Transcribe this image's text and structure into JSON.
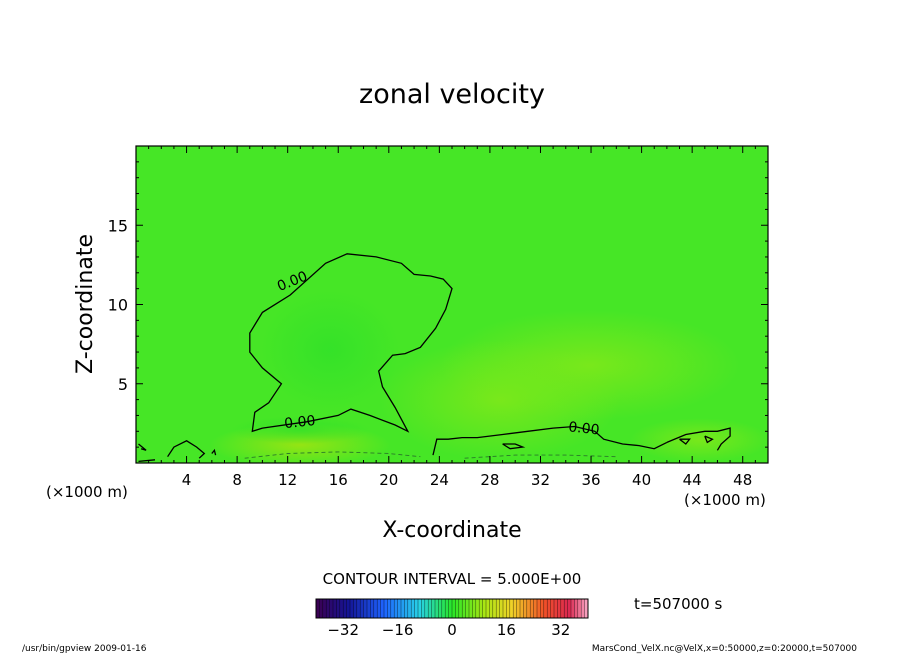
{
  "chart_data": {
    "type": "heatmap",
    "title": "zonal velocity",
    "xlabel": "X-coordinate",
    "ylabel": "Z-coordinate",
    "x_unit_left": "(×1000 m)",
    "x_unit_right": "(×1000 m)",
    "xlim": [
      0,
      50
    ],
    "ylim": [
      0,
      20
    ],
    "x_ticks": [
      4,
      8,
      12,
      16,
      20,
      24,
      28,
      32,
      36,
      40,
      44,
      48
    ],
    "y_ticks": [
      5,
      10,
      15
    ],
    "contour_interval_text": "CONTOUR INTERVAL = 5.000E+00",
    "time_text": "t=507000 s",
    "colorbar": {
      "min": -40,
      "max": 40,
      "ticks": [
        -32,
        -16,
        0,
        16,
        32
      ]
    },
    "contour_labels": [
      {
        "text": "0.00",
        "x": 12.5,
        "y": 11.2,
        "rotate": -22
      },
      {
        "text": "0.00",
        "x": 13.0,
        "y": 2.3,
        "rotate": -6
      },
      {
        "text": "0.00",
        "x": 35.4,
        "y": 1.9,
        "rotate": 6
      }
    ],
    "zero_contours": [
      [
        [
          10.0,
          2.2
        ],
        [
          13.5,
          2.6
        ],
        [
          16.0,
          3.0
        ],
        [
          17.0,
          3.4
        ],
        [
          18.5,
          3.0
        ],
        [
          20.5,
          2.4
        ],
        [
          21.5,
          2.0
        ],
        [
          20.5,
          3.5
        ],
        [
          19.5,
          4.8
        ],
        [
          19.2,
          5.8
        ],
        [
          20.3,
          6.8
        ],
        [
          21.3,
          6.9
        ],
        [
          22.5,
          7.3
        ],
        [
          23.7,
          8.5
        ],
        [
          24.5,
          9.7
        ],
        [
          25.0,
          11.0
        ],
        [
          24.3,
          11.6
        ],
        [
          23.3,
          11.8
        ],
        [
          22.0,
          11.9
        ],
        [
          21.0,
          12.6
        ],
        [
          19.0,
          13.0
        ],
        [
          16.7,
          13.2
        ],
        [
          15.0,
          12.6
        ],
        [
          12.2,
          10.6
        ],
        [
          10.0,
          9.5
        ],
        [
          9.0,
          8.2
        ],
        [
          9.0,
          7.0
        ],
        [
          10.0,
          6.0
        ],
        [
          11.5,
          5.0
        ],
        [
          10.5,
          3.8
        ],
        [
          9.4,
          3.2
        ],
        [
          9.2,
          2.0
        ],
        [
          10.0,
          2.2
        ]
      ],
      [
        [
          23.5,
          0.5
        ],
        [
          23.8,
          1.5
        ],
        [
          24.7,
          1.5
        ],
        [
          25.8,
          1.6
        ],
        [
          27.0,
          1.6
        ],
        [
          29.0,
          1.8
        ],
        [
          31.0,
          2.0
        ],
        [
          33.0,
          2.2
        ],
        [
          34.7,
          2.3
        ],
        [
          36.3,
          2.0
        ],
        [
          37.0,
          1.5
        ],
        [
          38.5,
          1.2
        ],
        [
          39.8,
          1.1
        ],
        [
          41.0,
          0.9
        ],
        [
          42.0,
          1.3
        ]
      ],
      [
        [
          42.0,
          1.3
        ],
        [
          43.5,
          1.8
        ],
        [
          45.0,
          2.0
        ],
        [
          46.0,
          2.0
        ],
        [
          47.0,
          2.2
        ],
        [
          47.0,
          1.7
        ],
        [
          46.3,
          1.2
        ],
        [
          46.0,
          0.8
        ]
      ],
      [
        [
          2.5,
          0.4
        ],
        [
          3.0,
          1.0
        ],
        [
          4.0,
          1.4
        ],
        [
          4.8,
          1.0
        ],
        [
          5.4,
          0.6
        ],
        [
          5.0,
          0.3
        ]
      ],
      [
        [
          0.2,
          1.2
        ],
        [
          0.8,
          0.8
        ],
        [
          0.4,
          0.9
        ]
      ],
      [
        [
          0.2,
          0.1
        ],
        [
          1.5,
          0.2
        ]
      ],
      [
        [
          6.0,
          0.6
        ],
        [
          6.2,
          0.8
        ],
        [
          6.3,
          0.5
        ]
      ],
      [
        [
          29.0,
          1.2
        ],
        [
          30.0,
          1.2
        ],
        [
          30.6,
          1.0
        ],
        [
          29.6,
          0.9
        ],
        [
          29.0,
          1.2
        ]
      ],
      [
        [
          43.0,
          1.5
        ],
        [
          43.8,
          1.5
        ],
        [
          43.5,
          1.2
        ],
        [
          43.0,
          1.5
        ]
      ],
      [
        [
          45.0,
          1.7
        ],
        [
          45.6,
          1.5
        ],
        [
          45.2,
          1.3
        ],
        [
          45.0,
          1.7
        ]
      ]
    ],
    "negative_contours": [
      [
        [
          8.6,
          0.3
        ],
        [
          12.0,
          0.6
        ],
        [
          16.0,
          0.7
        ],
        [
          20.0,
          0.6
        ],
        [
          22.5,
          0.4
        ]
      ],
      [
        [
          26.0,
          0.3
        ],
        [
          30.0,
          0.5
        ],
        [
          34.0,
          0.5
        ],
        [
          38.0,
          0.4
        ]
      ]
    ]
  },
  "footer": {
    "left": "/usr/bin/gpview   2009-01-16",
    "right": "MarsCond_VelX.nc@VelX,x=0:50000,z=0:20000,t=507000"
  }
}
